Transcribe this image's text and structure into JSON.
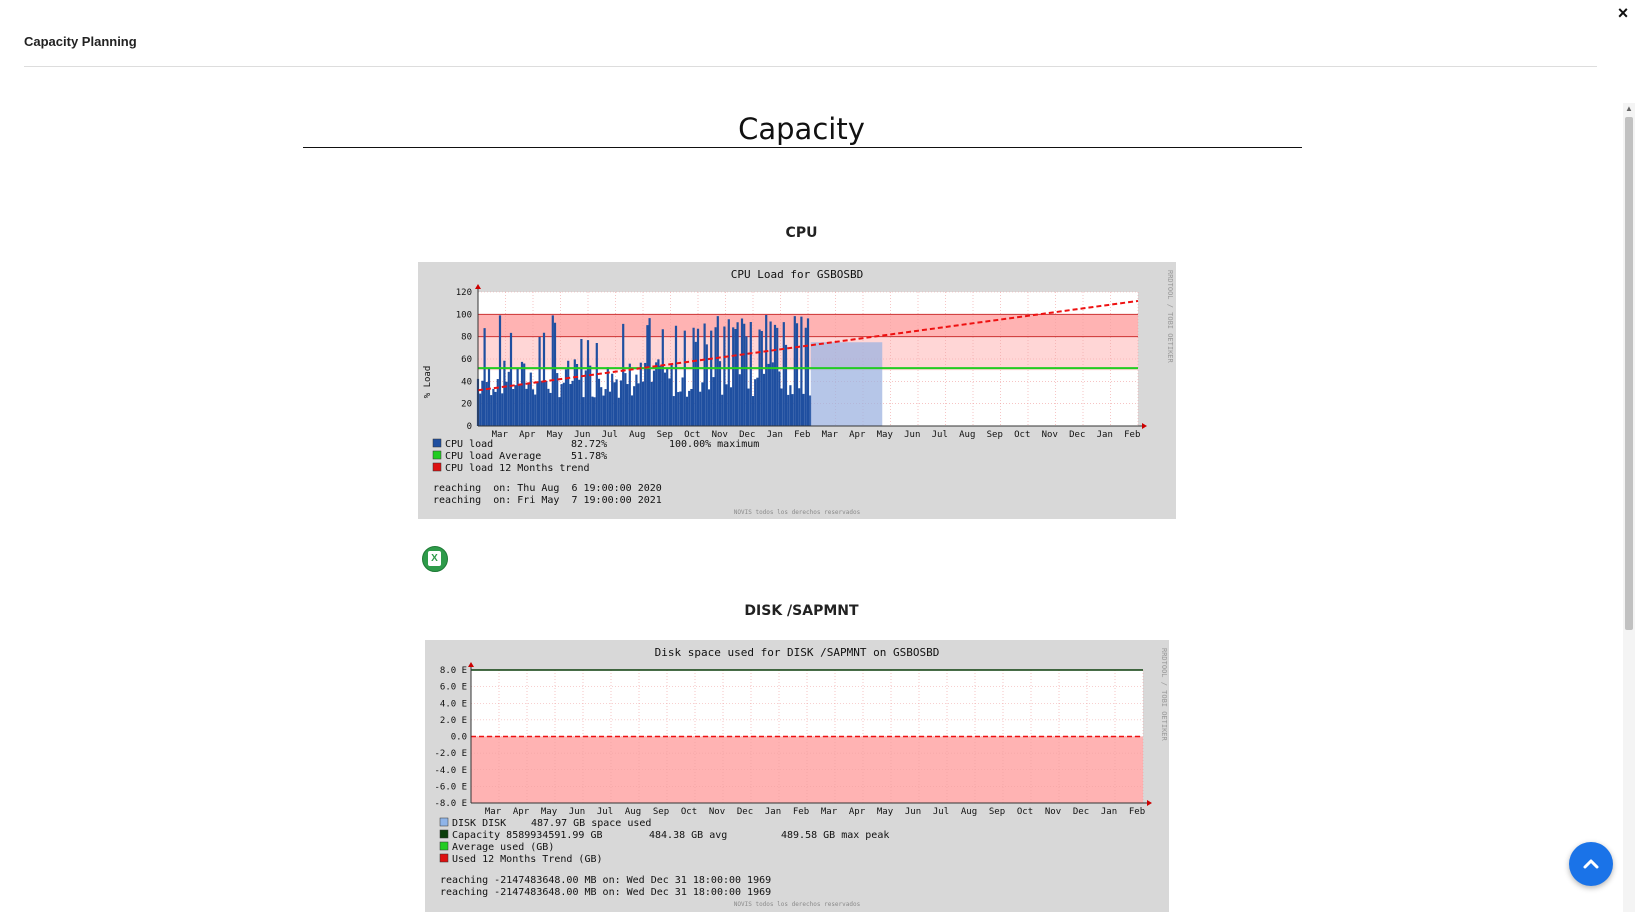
{
  "header": {
    "title": "Capacity Planning",
    "close_label": "×"
  },
  "page": {
    "title": "Capacity"
  },
  "sections": [
    {
      "title": "CPU"
    },
    {
      "title": "DISK /SAPMNT"
    }
  ],
  "cpu_graph": {
    "title": "CPU Load for GSBOSBD",
    "ylabel": "% Load",
    "y_ticks": [
      "120",
      "100",
      "80",
      "60",
      "40",
      "20",
      "0"
    ],
    "months": [
      "Mar",
      "Apr",
      "May",
      "Jun",
      "Jul",
      "Aug",
      "Sep",
      "Oct",
      "Nov",
      "Dec",
      "Jan",
      "Feb",
      "Mar",
      "Apr",
      "May",
      "Jun",
      "Jul",
      "Aug",
      "Sep",
      "Oct",
      "Nov",
      "Dec",
      "Jan",
      "Feb"
    ],
    "legend": [
      {
        "label": "CPU load",
        "value": "82.72%",
        "extra": "100.00% maximum",
        "color": "#1f4fa0"
      },
      {
        "label": "CPU load Average",
        "value": "51.78%",
        "color": "#22cc22"
      },
      {
        "label": "CPU load 12 Months trend",
        "color": "#dd1111"
      }
    ],
    "reaching": [
      "reaching  on: Thu Aug  6 19:00:00 2020",
      "reaching  on: Fri May  7 19:00:00 2021"
    ],
    "watermark": "NOVIS todos los derechos reservados",
    "side_text": "RRDTOOL / TOBI OETIKER",
    "colors": {
      "load": "#1f4fa0",
      "average": "#22cc22",
      "trend": "#ee1111",
      "band": "#ffb3b3"
    }
  },
  "disk_graph": {
    "title": "Disk space used for DISK /SAPMNT on GSBOSBD",
    "y_ticks": [
      "8.0 E",
      "6.0 E",
      "4.0 E",
      "2.0 E",
      "0.0",
      "-2.0 E",
      "-4.0 E",
      "-6.0 E",
      "-8.0 E"
    ],
    "months": [
      "Mar",
      "Apr",
      "May",
      "Jun",
      "Jul",
      "Aug",
      "Sep",
      "Oct",
      "Nov",
      "Dec",
      "Jan",
      "Feb",
      "Mar",
      "Apr",
      "May",
      "Jun",
      "Jul",
      "Aug",
      "Sep",
      "Oct",
      "Nov",
      "Dec",
      "Jan",
      "Feb"
    ],
    "legend": [
      {
        "label": "DISK DISK",
        "value": "487.97 GB space used",
        "color": "#8fb4e8"
      },
      {
        "label": "Capacity 8589934591.99 GB",
        "value": "484.38 GB avg",
        "extra": "489.58 GB max peak",
        "color": "#0a3d0a"
      },
      {
        "label": "Average used (GB)",
        "color": "#22cc22"
      },
      {
        "label": "Used 12 Months Trend (GB)",
        "color": "#dd1111"
      }
    ],
    "reaching": [
      "reaching -2147483648.00 MB on: Wed Dec 31 18:00:00 1969",
      "reaching -2147483648.00 MB on: Wed Dec 31 18:00:00 1969"
    ],
    "watermark": "NOVIS todos los derechos reservados",
    "side_text": "RRDTOOL / TOBI OETIKER"
  },
  "excel_button": {
    "label": "X",
    "icon": "excel-icon"
  },
  "scroll_top_button": {
    "icon": "chevron-up-icon"
  }
}
